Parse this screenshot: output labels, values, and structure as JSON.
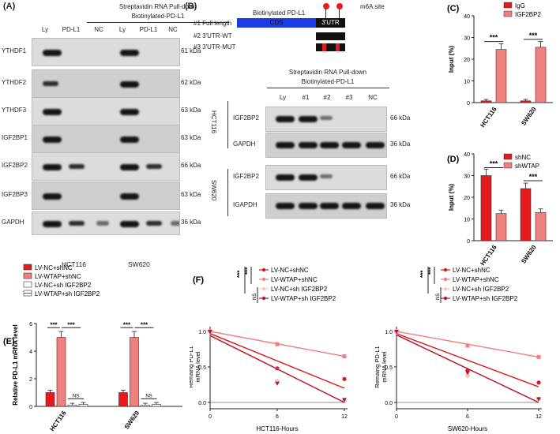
{
  "panelA": {
    "label": "(A)",
    "title1": "Streptavidin RNA Pull-down",
    "title2": "Biotinylated-PD-L1",
    "lanes": [
      "Ly",
      "PD-L1",
      "NC",
      "Ly",
      "PD-L1",
      "NC"
    ],
    "proteins": [
      "YTHDF1",
      "YTHDF2",
      "YTHDF3",
      "IGF2BP1",
      "IGF2BP2",
      "IGF2BP3",
      "GAPDH"
    ],
    "kda": [
      "61 kDa",
      "62 kDa",
      "63 kDa",
      "63 kDa",
      "66 kDa",
      "63 kDa",
      "36 kDa"
    ],
    "cells": [
      "HCT116",
      "SW620"
    ]
  },
  "panelB": {
    "label": "(B)",
    "construct_title": "Biotinylated PD-L1",
    "m6a": "m6A site",
    "cds": "CDS",
    "utr": "3'UTR",
    "constructs": [
      "#1 Full length",
      "#2 3'UTR-WT",
      "#3 3'UTR-MUT"
    ],
    "title1": "Streptavidin RNA Pull-down",
    "title2": "Biotinylated-PD-L1",
    "lanes": [
      "Ly",
      "#1",
      "#2",
      "#3",
      "NC"
    ],
    "cells": [
      "HCT116",
      "SW620"
    ],
    "proteins_top": [
      "IGF2BP2",
      "GAPDH"
    ],
    "proteins_bottom": [
      "IGF2BP2",
      "IGAPDH"
    ],
    "kda": [
      "66 kDa",
      "36 kDa",
      "66 kDa",
      "36 kDa"
    ]
  },
  "panelC": {
    "label": "(C)",
    "ylabel": "Input (%)",
    "legend": [
      "IgG",
      "IGF2BP2"
    ],
    "sig": [
      "***",
      "***"
    ],
    "chart_data": {
      "type": "bar",
      "categories": [
        "HCT116",
        "SW620"
      ],
      "series": [
        {
          "name": "IgG",
          "values": [
            0.8,
            0.8
          ],
          "color": "#e41a1c"
        },
        {
          "name": "IGF2BP2",
          "values": [
            24.5,
            25.5
          ],
          "color": "#f08080"
        }
      ],
      "ylim": [
        0,
        40
      ],
      "yticks": [
        "0",
        "10",
        "20",
        "30",
        "40"
      ]
    }
  },
  "panelD": {
    "label": "(D)",
    "ylabel": "Input (%)",
    "legend": [
      "shNC",
      "shWTAP"
    ],
    "sig": [
      "***",
      "***"
    ],
    "chart_data": {
      "type": "bar",
      "categories": [
        "HCT116",
        "SW620"
      ],
      "series": [
        {
          "name": "shNC",
          "values": [
            30,
            24
          ],
          "color": "#e41a1c"
        },
        {
          "name": "shWTAP",
          "values": [
            12.5,
            13
          ],
          "color": "#f08080"
        }
      ],
      "ylim": [
        0,
        40
      ],
      "yticks": [
        "0",
        "10",
        "20",
        "30",
        "40"
      ]
    }
  },
  "panelE": {
    "label": "(E)",
    "ylabel": "Relative PD-L1 mRNA level",
    "legend": [
      "LV-NC+shNC",
      "LV-WTAP+shNC",
      "LV-NC+sh IGF2BP2",
      "LV-WTAP+sh IGF2BP2"
    ],
    "sig": [
      "***",
      "***",
      "NS",
      "***",
      "***",
      "NS"
    ],
    "chart_data": {
      "type": "bar",
      "categories": [
        "HCT116",
        "SW620"
      ],
      "series": [
        {
          "name": "LV-NC+shNC",
          "values": [
            1.0,
            1.0
          ]
        },
        {
          "name": "LV-WTAP+shNC",
          "values": [
            5.0,
            5.0
          ]
        },
        {
          "name": "LV-NC+sh IGF2BP2",
          "values": [
            0.1,
            0.1
          ]
        },
        {
          "name": "LV-WTAP+sh IGF2BP2",
          "values": [
            0.15,
            0.15
          ]
        }
      ],
      "ylim": [
        0,
        6
      ],
      "yticks": [
        "0",
        "2",
        "4",
        "6"
      ]
    }
  },
  "panelF": {
    "label": "(F)",
    "ylabel": "Remaing PD-L1 mRNA level",
    "legend": [
      "LV-NC+shNC",
      "LV-WTAP+shNC",
      "LV-NC+sh IGF2BP2",
      "LV-WTAP+sh IGF2BP2"
    ],
    "sig": [
      "***",
      "***",
      "NS"
    ],
    "chart_data": [
      {
        "type": "line",
        "xlabel": "HCT116-Hours",
        "x": [
          0,
          6,
          12
        ],
        "ylim": [
          0,
          1.0
        ],
        "yticks": [
          "0.0",
          "0.5",
          "1.0"
        ],
        "xticks": [
          "0",
          "6",
          "12"
        ],
        "series": [
          {
            "name": "LV-NC+shNC",
            "points": [
              [
                0,
                1.0
              ],
              [
                6,
                0.48
              ],
              [
                12,
                0.33
              ]
            ],
            "fit": [
              0.97,
              0.2
            ]
          },
          {
            "name": "LV-WTAP+shNC",
            "points": [
              [
                0,
                1.0
              ],
              [
                6,
                0.82
              ],
              [
                12,
                0.65
              ]
            ],
            "fit": [
              1.0,
              0.65
            ]
          },
          {
            "name": "LV-NC+sh IGF2BP2",
            "points": [
              [
                0,
                1.0
              ],
              [
                6,
                0.3
              ],
              [
                12,
                0.02
              ]
            ],
            "fit": [
              0.95,
              0.0
            ]
          },
          {
            "name": "LV-WTAP+sh IGF2BP2",
            "points": [
              [
                0,
                1.0
              ],
              [
                6,
                0.27
              ],
              [
                12,
                0.04
              ]
            ],
            "fit": [
              0.94,
              0.0
            ]
          }
        ]
      },
      {
        "type": "line",
        "xlabel": "SW620-Hours",
        "x": [
          0,
          6,
          12
        ],
        "ylim": [
          0,
          1.0
        ],
        "yticks": [
          "0.0",
          "0.5",
          "1.0"
        ],
        "xticks": [
          "0",
          "6",
          "12"
        ],
        "series": [
          {
            "name": "LV-NC+shNC",
            "points": [
              [
                0,
                1.0
              ],
              [
                6,
                0.45
              ],
              [
                12,
                0.28
              ]
            ],
            "fit": [
              0.97,
              0.22
            ]
          },
          {
            "name": "LV-WTAP+shNC",
            "points": [
              [
                0,
                1.0
              ],
              [
                6,
                0.8
              ],
              [
                12,
                0.64
              ]
            ],
            "fit": [
              1.0,
              0.64
            ]
          },
          {
            "name": "LV-NC+sh IGF2BP2",
            "points": [
              [
                0,
                1.0
              ],
              [
                6,
                0.38
              ],
              [
                12,
                0.05
              ]
            ],
            "fit": [
              0.96,
              0.0
            ]
          },
          {
            "name": "LV-WTAP+sh IGF2BP2",
            "points": [
              [
                0,
                1.0
              ],
              [
                6,
                0.42
              ],
              [
                12,
                0.05
              ]
            ],
            "fit": [
              0.95,
              0.0
            ]
          }
        ]
      }
    ]
  }
}
